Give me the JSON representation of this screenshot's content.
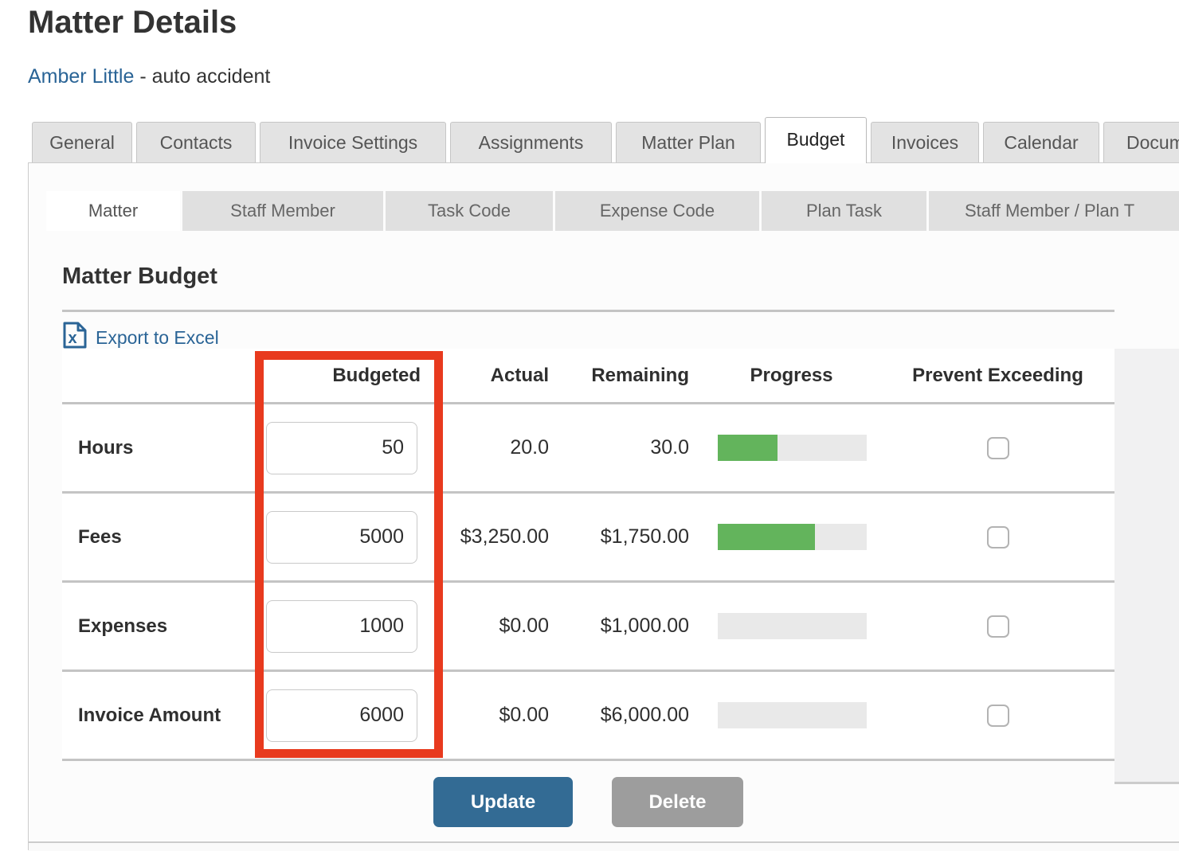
{
  "page": {
    "title": "Matter Details",
    "client_link": "Amber Little",
    "matter_description": " - auto accident"
  },
  "tabs": [
    {
      "label": "General",
      "active": false
    },
    {
      "label": "Contacts",
      "active": false
    },
    {
      "label": "Invoice Settings",
      "active": false
    },
    {
      "label": "Assignments",
      "active": false
    },
    {
      "label": "Matter Plan",
      "active": false
    },
    {
      "label": "Budget",
      "active": true
    },
    {
      "label": "Invoices",
      "active": false
    },
    {
      "label": "Calendar",
      "active": false
    },
    {
      "label": "Docum",
      "active": false
    }
  ],
  "subtabs": [
    {
      "label": "Matter",
      "active": true
    },
    {
      "label": "Staff Member",
      "active": false
    },
    {
      "label": "Task Code",
      "active": false
    },
    {
      "label": "Expense Code",
      "active": false
    },
    {
      "label": "Plan Task",
      "active": false
    },
    {
      "label": "Staff Member / Plan T",
      "active": false
    }
  ],
  "budget": {
    "section_title": "Matter Budget",
    "export_label": "Export to Excel",
    "export_icon": "excel-document-icon",
    "table": {
      "headers": {
        "budgeted": "Budgeted",
        "actual": "Actual",
        "remaining": "Remaining",
        "progress": "Progress",
        "prevent": "Prevent Exceeding"
      },
      "rows": [
        {
          "label": "Hours",
          "budgeted": "50",
          "actual": "20.0",
          "remaining": "30.0",
          "progress_pct": 40,
          "prevent_checked": false
        },
        {
          "label": "Fees",
          "budgeted": "5000",
          "actual": "$3,250.00",
          "remaining": "$1,750.00",
          "progress_pct": 65,
          "prevent_checked": false
        },
        {
          "label": "Expenses",
          "budgeted": "1000",
          "actual": "$0.00",
          "remaining": "$1,000.00",
          "progress_pct": 0,
          "prevent_checked": false
        },
        {
          "label": "Invoice Amount",
          "budgeted": "6000",
          "actual": "$0.00",
          "remaining": "$6,000.00",
          "progress_pct": 0,
          "prevent_checked": false
        }
      ]
    },
    "buttons": {
      "update": "Update",
      "delete": "Delete"
    }
  },
  "colors": {
    "link_blue": "#2a6496",
    "update_button_blue": "#336b94",
    "delete_button_gray": "#9d9d9d",
    "progress_green": "#63b45c",
    "progress_track_gray": "#e9e9e9",
    "highlight_red": "#e83a1e"
  }
}
